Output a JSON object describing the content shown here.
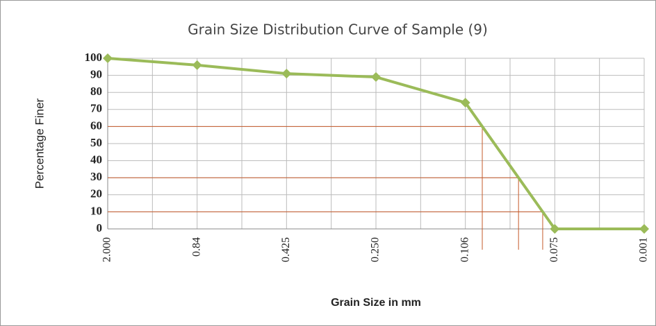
{
  "chart_data": {
    "type": "line",
    "title": "Grain Size  Distribution Curve  of Sample (9)",
    "x_label": "Grain Size in mm",
    "y_label": "Percentage Finer",
    "categories": [
      "2.000",
      "0.84",
      "0.425",
      "0.250",
      "0.106",
      "0.075",
      "0.001"
    ],
    "values": [
      100,
      96,
      91,
      89,
      74,
      0,
      0
    ],
    "color": "#9bbb59",
    "ylim": [
      0,
      100
    ],
    "yticks": [
      0,
      10,
      20,
      30,
      40,
      50,
      60,
      70,
      80,
      90,
      100
    ],
    "grid": true,
    "reference_y": [
      60,
      30,
      10
    ],
    "reference_color": "#c55a2b"
  }
}
